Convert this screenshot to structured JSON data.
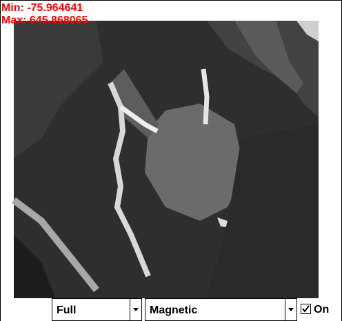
{
  "overlay": {
    "min": "Min: -75.964641",
    "max": "Max: 645.868065"
  },
  "controls": {
    "range": "Full",
    "channel": "Magnetic",
    "checkbox": "On"
  }
}
